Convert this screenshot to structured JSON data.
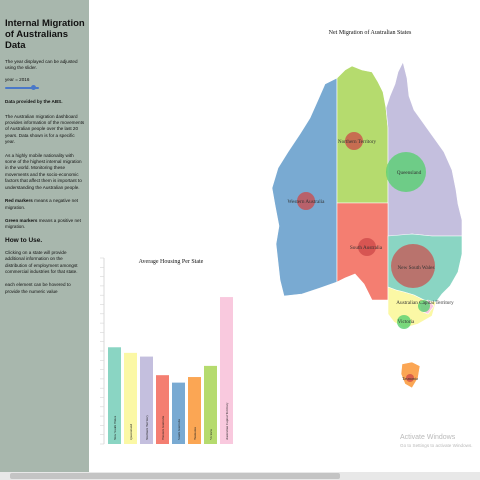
{
  "sidebar": {
    "title": "Internal Migration of Australians Data",
    "intro": "The year displayed can be adjusted using the slider.",
    "year_label": "year = 2016",
    "year_slider_fraction": 0.9,
    "source": "Data provided by the ABS.",
    "desc1": "The Australian migration dashboard provides information of the movements of Australian people over the last 20 years. Data shown is for a specific year.",
    "desc2": "As a highly mobile nationality with some of the highest internal migration in the world. Monitoring these movements and the socio-economic factors that affect them is important to understanding the Australian people.",
    "red_bold": "Red markers",
    "red_rest": " means a negative net migration.",
    "green_bold": "Green markers",
    "green_rest": " means a positive net migration.",
    "howto_title": "How to Use.",
    "howto1": "Clicking on a state will provide additional information on the distribution of employment amongst commercial industries for that state.",
    "howto2": "each element can be hovered to provide the numeric value"
  },
  "map": {
    "title": "Net Migration of Australian States",
    "labels": {
      "wa": "Western Australia",
      "nt": "Northern Territory",
      "qld": "Queensland",
      "sa": "South Australia",
      "nsw": "New South Wales",
      "act": "Australian Capital Territory",
      "vic": "Victoria",
      "tas": "Tasmania"
    },
    "colors": {
      "wa": "#79aad2",
      "nt": "#b5db6e",
      "qld": "#c4bfde",
      "sa": "#f47e71",
      "nsw": "#8ad5c3",
      "act": "#f9c9de",
      "vic": "#fbf8a5",
      "tas": "#fba654",
      "marker_negative": "#cd4848",
      "marker_positive": "#59d070"
    }
  },
  "chart_data": {
    "type": "bar",
    "title": "Average Housing Per State",
    "categories": [
      "New South Wales",
      "Queensland",
      "Northern Territory",
      "Western Australia",
      "South Australia",
      "Tasmania",
      "Victoria",
      "Australian Capital Territory"
    ],
    "values": [
      0.52,
      0.49,
      0.47,
      0.37,
      0.33,
      0.36,
      0.42,
      0.79
    ],
    "colors": [
      "#8ad5c3",
      "#fbf8a5",
      "#c4bfde",
      "#f47e71",
      "#79aad2",
      "#fba654",
      "#b5db6e",
      "#f9c9de"
    ],
    "ylim": [
      0,
      1
    ],
    "grid": false
  },
  "watermark": {
    "line1": "Activate Windows",
    "line2": "Go to Settings to activate Windows."
  }
}
